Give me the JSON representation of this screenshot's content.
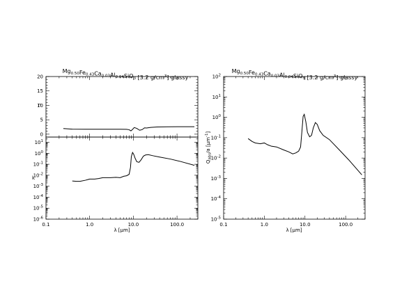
{
  "title": {
    "prefix": "Mg",
    "parts": [
      {
        "elem": "Mg",
        "sub": "0.50"
      },
      {
        "elem": "Fe",
        "sub": "0.43"
      },
      {
        "elem": "Ca",
        "sub": "0.03"
      },
      {
        "elem": "Al",
        "sub": "0.04"
      },
      {
        "elem": "SiO",
        "sub": "3"
      }
    ],
    "suffix_open": " [3.2 g/cm",
    "suffix_sup": "3",
    "suffix_close": "] glassy"
  },
  "chart_data": [
    {
      "type": "line",
      "panel": "n",
      "ylabel": "n",
      "xlabel": "λ [μm]",
      "xscale": "log",
      "xlim": [
        0.1,
        300
      ],
      "ylim": [
        -1,
        20
      ],
      "yticks": [
        0,
        5,
        10,
        15,
        20
      ],
      "x": [
        0.25,
        0.4,
        0.8,
        1.5,
        3,
        5,
        7,
        8,
        8.8,
        9.5,
        10.5,
        12,
        14,
        16,
        18,
        20,
        25,
        35,
        60,
        100,
        250
      ],
      "y": [
        1.95,
        1.75,
        1.72,
        1.72,
        1.72,
        1.72,
        1.68,
        1.55,
        1.15,
        1.6,
        2.3,
        2.0,
        1.35,
        1.6,
        2.2,
        2.15,
        2.35,
        2.5,
        2.55,
        2.6,
        2.6
      ]
    },
    {
      "type": "line",
      "panel": "k",
      "ylabel": "k",
      "xlabel": "λ [μm]",
      "xscale": "log",
      "yscale": "log",
      "xlim": [
        0.1,
        300
      ],
      "ylim": [
        1e-06,
        30
      ],
      "yticks": [
        "10^1",
        "10^0",
        "10^-1",
        "10^-2",
        "10^-3",
        "10^-4",
        "10^-5",
        "10^-6"
      ],
      "xticks": [
        "0.1",
        "1.0",
        "10.0",
        "100.0"
      ],
      "x": [
        0.4,
        0.5,
        0.6,
        0.8,
        1,
        1.3,
        1.6,
        2,
        3,
        4,
        5,
        6,
        7,
        8,
        8.6,
        9,
        9.6,
        10.2,
        11,
        12,
        13.5,
        15,
        17,
        19,
        22,
        28,
        40,
        70,
        120,
        250
      ],
      "y": [
        0.003,
        0.0028,
        0.0028,
        0.0035,
        0.0045,
        0.0045,
        0.005,
        0.006,
        0.006,
        0.0065,
        0.006,
        0.008,
        0.009,
        0.012,
        0.05,
        0.5,
        1.2,
        0.8,
        0.35,
        0.17,
        0.15,
        0.25,
        0.55,
        0.7,
        0.75,
        0.6,
        0.45,
        0.3,
        0.18,
        0.08
      ]
    },
    {
      "type": "line",
      "panel": "Qabs",
      "ylabel": "Q_abs/a [μm^-1]",
      "xlabel": "λ [μm]",
      "xscale": "log",
      "yscale": "log",
      "xlim": [
        0.1,
        300
      ],
      "ylim": [
        1e-05,
        100
      ],
      "yticks": [
        "10^2",
        "10^1",
        "10^0",
        "10^-1",
        "10^-2",
        "10^-3",
        "10^-4",
        "10^-5"
      ],
      "xticks": [
        "0.1",
        "1.0",
        "10.0",
        "100.0"
      ],
      "x": [
        0.4,
        0.5,
        0.6,
        0.8,
        1.0,
        1.2,
        1.5,
        2,
        3,
        4,
        5,
        6,
        7,
        7.8,
        8.4,
        9,
        9.6,
        10.5,
        11.5,
        13,
        14.5,
        16,
        18,
        20,
        23,
        28,
        40,
        70,
        120,
        250
      ],
      "y": [
        0.09,
        0.065,
        0.055,
        0.05,
        0.055,
        0.045,
        0.038,
        0.035,
        0.025,
        0.02,
        0.016,
        0.018,
        0.022,
        0.035,
        0.2,
        1.1,
        1.4,
        0.6,
        0.18,
        0.11,
        0.13,
        0.3,
        0.55,
        0.45,
        0.22,
        0.13,
        0.08,
        0.025,
        0.008,
        0.0015
      ]
    }
  ],
  "labels": {
    "n_y": "n",
    "k_y": "k",
    "x": "λ [μm]",
    "q_y_main": "Q",
    "q_y_sub": "abs",
    "q_y_rest": "/a [μm",
    "q_y_sup": "-1",
    "q_y_close": "]"
  }
}
